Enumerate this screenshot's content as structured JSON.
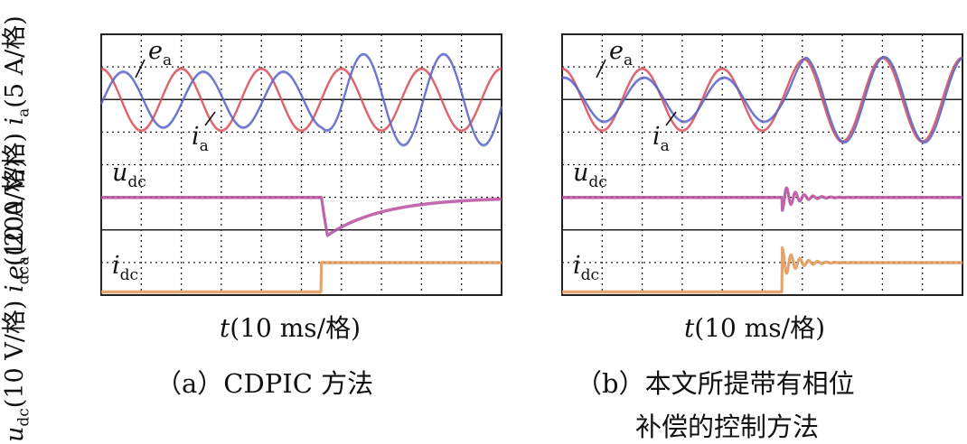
{
  "y_axis_labels": {
    "ua_top": {
      "var": "e",
      "sub": "a",
      "text": "(200 V/格) "
    },
    "ua_mid": {
      "var": "i",
      "sub": "a",
      "text": "(5 A/格)"
    },
    "dc_top": {
      "var": "u",
      "sub": "dc",
      "text": "(10 V/格) "
    },
    "dc_mid": {
      "var": "i",
      "sub": "dc",
      "text": "(10 A/格)"
    }
  },
  "colors": {
    "ea": "#d9505a",
    "ia": "#5a64c8",
    "udc": "#b84fa0",
    "idc": "#e0995a",
    "grid": "#222222"
  },
  "panels": [
    {
      "id": "a",
      "x_axis_label": {
        "var": "t",
        "text": "(10 ms/格)"
      },
      "caption": [
        "（a）CDPIC 方法"
      ],
      "trace_labels": {
        "ea": {
          "var": "e",
          "sub": "a"
        },
        "ia": {
          "var": "i",
          "sub": "a"
        },
        "udc": {
          "var": "u",
          "sub": "dc"
        },
        "idc": {
          "var": "i",
          "sub": "dc"
        }
      },
      "chart_data": {
        "type": "line",
        "step_time_div": 5.5,
        "divisions": {
          "x": 10,
          "y": 8
        },
        "series": [
          {
            "name": "ea",
            "kind": "sine",
            "amplitude_div": 0.95,
            "period_div": 2.0,
            "offset_div": 6.0,
            "before_step_amp_scale": 1.0,
            "after_step_amp_scale": 1.0
          },
          {
            "name": "ia",
            "kind": "sine",
            "amplitude_div": 0.9,
            "period_div": 2.0,
            "offset_div": 6.0,
            "phase_lag_div": 0.55,
            "before_step_amp_scale": 0.95,
            "after_step_amp_scale": 1.55
          },
          {
            "name": "udc",
            "kind": "step",
            "level_div": 3.0,
            "dip_div": 1.3,
            "recovery_tau_div": 1.4
          },
          {
            "name": "idc",
            "kind": "step",
            "level_before_div": 0.1,
            "level_after_div": 1.0
          }
        ]
      }
    },
    {
      "id": "b",
      "x_axis_label": {
        "var": "t",
        "text": "(10 ms/格)"
      },
      "caption": [
        "（b）本文所提带有相位",
        "补偿的控制方法"
      ],
      "trace_labels": {
        "ea": {
          "var": "e",
          "sub": "a"
        },
        "ia": {
          "var": "i",
          "sub": "a"
        },
        "udc": {
          "var": "u",
          "sub": "dc"
        },
        "idc": {
          "var": "i",
          "sub": "dc"
        }
      },
      "chart_data": {
        "type": "line",
        "step_time_div": 5.5,
        "divisions": {
          "x": 10,
          "y": 8
        },
        "series": [
          {
            "name": "ea",
            "kind": "sine",
            "amplitude_div": 0.95,
            "period_div": 2.0,
            "offset_div": 6.0,
            "before_step_amp_scale": 1.0,
            "after_step_amp_scale": 1.35
          },
          {
            "name": "ia",
            "kind": "sine",
            "amplitude_div": 0.9,
            "period_div": 2.0,
            "offset_div": 6.0,
            "phase_lag_div": 0.05,
            "before_step_amp_scale": 0.75,
            "after_step_amp_scale": 1.45
          },
          {
            "name": "udc",
            "kind": "step_osc",
            "level_div": 3.0,
            "osc_amp_div": 0.4,
            "osc_decay_div": 0.35
          },
          {
            "name": "idc",
            "kind": "step_osc",
            "level_before_div": 0.1,
            "level_after_div": 1.0,
            "osc_amp_div": 0.45,
            "osc_decay_div": 0.35
          }
        ]
      }
    }
  ]
}
